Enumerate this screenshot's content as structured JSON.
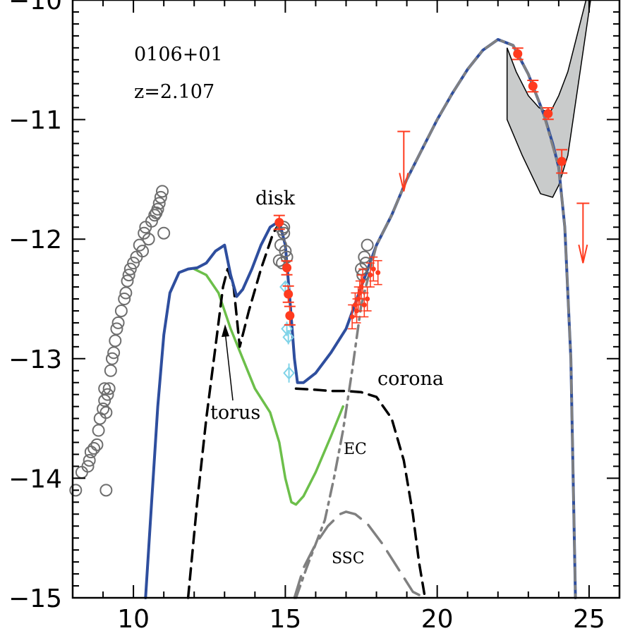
{
  "chart_data": {
    "type": "line",
    "title": "",
    "xlabel": "",
    "ylabel": "",
    "xlim": [
      8,
      26
    ],
    "ylim": [
      -15,
      -10
    ],
    "x_ticks": [
      10,
      15,
      20,
      25
    ],
    "y_ticks": [
      -15,
      -14,
      -13,
      -12,
      -11,
      -10
    ],
    "x_tick_labels": [
      "10",
      "15",
      "20",
      "25"
    ],
    "y_tick_labels": [
      "−15",
      "−14",
      "−13",
      "−12",
      "−11",
      "−10"
    ],
    "annotations": {
      "source": "0106+01",
      "redshift": "z=2.107",
      "disk": "disk",
      "torus": "torus",
      "corona": "corona",
      "ec": "EC",
      "ssc": "SSC"
    },
    "colors": {
      "total": "#2e4e9e",
      "synchrotron": "#6cbf4a",
      "thermal": "#000000",
      "ec": "#808080",
      "ssc": "#808080",
      "data_red": "#ff3b1f",
      "data_cyan": "#7fd3e8",
      "archival": "#6e6e6e",
      "fermi_band": "#c9cbcb"
    },
    "series": [
      {
        "key": "total",
        "x": [
          10.4,
          10.6,
          10.8,
          11.0,
          11.2,
          11.5,
          11.8,
          12.1,
          12.4,
          12.7,
          13.0,
          13.2,
          13.4,
          13.6,
          13.9,
          14.2,
          14.5,
          14.8,
          15.0,
          15.15,
          15.3,
          15.4,
          15.6,
          16.0,
          16.5,
          17.0,
          17.5,
          18.0,
          18.5,
          19.0,
          19.5,
          20.0,
          20.5,
          21.0,
          21.5,
          22.0,
          22.5,
          23.0,
          23.5,
          23.8,
          24.0,
          24.2,
          24.4,
          24.55
        ],
        "y": [
          -15.0,
          -14.2,
          -13.4,
          -12.8,
          -12.45,
          -12.28,
          -12.25,
          -12.24,
          -12.2,
          -12.1,
          -12.05,
          -12.3,
          -12.48,
          -12.42,
          -12.25,
          -12.05,
          -11.9,
          -11.85,
          -12.05,
          -12.5,
          -13.0,
          -13.2,
          -13.2,
          -13.12,
          -12.95,
          -12.75,
          -12.4,
          -12.05,
          -11.8,
          -11.5,
          -11.25,
          -11.0,
          -10.78,
          -10.58,
          -10.42,
          -10.33,
          -10.38,
          -10.62,
          -10.95,
          -11.2,
          -11.4,
          -11.9,
          -13.0,
          -15.0
        ]
      },
      {
        "key": "synchrotron",
        "x": [
          12.0,
          12.4,
          12.8,
          13.2,
          13.6,
          14.0,
          14.5,
          14.8,
          15.0,
          15.2,
          15.35,
          15.6,
          16.0,
          16.5,
          16.9
        ],
        "y": [
          -12.25,
          -12.3,
          -12.45,
          -12.75,
          -13.0,
          -13.25,
          -13.45,
          -13.7,
          -14.0,
          -14.2,
          -14.22,
          -14.15,
          -13.95,
          -13.65,
          -13.4
        ]
      },
      {
        "key": "torus",
        "x": [
          11.8,
          12.1,
          12.4,
          12.7,
          12.95,
          13.1,
          13.3,
          13.5,
          13.8,
          14.2,
          14.6,
          14.85
        ],
        "y": [
          -15.0,
          -14.2,
          -13.5,
          -12.9,
          -12.4,
          -12.25,
          -12.4,
          -12.9,
          -12.6,
          -12.25,
          -11.95,
          -11.85
        ]
      },
      {
        "key": "corona",
        "x": [
          15.35,
          16.0,
          16.5,
          17.0,
          17.5,
          18.0,
          18.5,
          18.9,
          19.2,
          19.4,
          19.6
        ],
        "y": [
          -13.25,
          -13.26,
          -13.27,
          -13.27,
          -13.28,
          -13.32,
          -13.5,
          -13.85,
          -14.3,
          -14.7,
          -15.0
        ]
      },
      {
        "key": "ec",
        "x": [
          15.35,
          15.7,
          16.0,
          16.3,
          16.6,
          16.9,
          17.2,
          17.5,
          18.0,
          18.5,
          19.0,
          19.5,
          20.0,
          20.5,
          21.0,
          21.5,
          22.0,
          22.5,
          23.0,
          23.5,
          24.0,
          24.2,
          24.4,
          24.55
        ],
        "y": [
          -15.0,
          -14.75,
          -14.55,
          -14.35,
          -14.0,
          -13.6,
          -13.1,
          -12.55,
          -12.05,
          -11.8,
          -11.5,
          -11.25,
          -11.0,
          -10.78,
          -10.58,
          -10.42,
          -10.33,
          -10.38,
          -10.62,
          -10.95,
          -11.4,
          -11.9,
          -13.0,
          -15.0
        ]
      },
      {
        "key": "ssc",
        "x": [
          15.3,
          15.6,
          16.0,
          16.4,
          16.8,
          17.0,
          17.3,
          17.7,
          18.2,
          18.7,
          19.2,
          19.6
        ],
        "y": [
          -15.0,
          -14.75,
          -14.55,
          -14.4,
          -14.3,
          -14.28,
          -14.3,
          -14.38,
          -14.55,
          -14.75,
          -14.95,
          -15.0
        ]
      }
    ],
    "fermi_band": {
      "upper_x": [
        22.3,
        22.6,
        23.0,
        23.35,
        23.7,
        24.0,
        24.3,
        24.6,
        24.9,
        25.05
      ],
      "upper_y": [
        -10.4,
        -10.6,
        -10.8,
        -10.9,
        -10.95,
        -10.8,
        -10.6,
        -10.3,
        -10.0,
        -10.0
      ],
      "lower_x": [
        22.3,
        22.8,
        23.4,
        23.8,
        24.0,
        24.3
      ],
      "lower_y": [
        -11.0,
        -11.3,
        -11.62,
        -11.65,
        -11.55,
        -11.3
      ]
    },
    "data_red_large": {
      "x": [
        14.8,
        15.05,
        15.1,
        15.15,
        22.65,
        23.15,
        23.65,
        24.1
      ],
      "y": [
        -11.86,
        -12.24,
        -12.46,
        -12.64,
        -10.45,
        -10.72,
        -10.95,
        -11.35
      ],
      "yerr": [
        0.04,
        0.04,
        0.05,
        0.06,
        0.03,
        0.03,
        0.03,
        0.08
      ]
    },
    "data_red_small": {
      "x": [
        17.2,
        17.3,
        17.35,
        17.4,
        17.45,
        17.5,
        17.55,
        17.6,
        17.7,
        17.8,
        17.9,
        18.05
      ],
      "y": [
        -12.65,
        -12.55,
        -12.6,
        -12.5,
        -12.45,
        -12.4,
        -12.35,
        -12.55,
        -12.5,
        -12.3,
        -12.25,
        -12.28
      ],
      "yerr": [
        0.1,
        0.1,
        0.1,
        0.1,
        0.1,
        0.1,
        0.1,
        0.1,
        0.1,
        0.1,
        0.1,
        0.1
      ]
    },
    "data_cyan": {
      "x": [
        15.0,
        15.05,
        15.1,
        15.12
      ],
      "y": [
        -12.4,
        -12.75,
        -12.82,
        -13.12
      ],
      "yerr": [
        0.05,
        0.06,
        0.06,
        0.08
      ]
    },
    "upper_limits": {
      "x": [
        18.9,
        24.8
      ],
      "y": [
        -11.1,
        -11.7
      ],
      "arrow_len": 0.5
    },
    "archival": {
      "x": [
        8.1,
        8.3,
        8.5,
        8.55,
        8.6,
        8.7,
        8.8,
        8.85,
        8.9,
        9.0,
        9.05,
        9.05,
        9.1,
        9.1,
        9.15,
        9.2,
        9.25,
        9.3,
        9.35,
        9.4,
        9.45,
        9.5,
        9.6,
        9.7,
        9.75,
        9.8,
        9.85,
        9.9,
        10.0,
        10.1,
        10.2,
        10.3,
        10.35,
        10.4,
        10.5,
        10.6,
        10.7,
        10.75,
        10.8,
        10.85,
        10.9,
        10.95,
        11.0,
        14.9,
        14.95,
        15.0,
        15.05,
        14.9,
        14.85,
        14.8,
        14.95,
        17.5,
        17.6,
        17.7,
        17.55,
        17.65
      ],
      "y": [
        -14.1,
        -13.95,
        -13.9,
        -13.85,
        -13.78,
        -13.75,
        -13.72,
        -13.6,
        -13.5,
        -13.42,
        -13.35,
        -13.25,
        -13.45,
        -14.1,
        -13.3,
        -13.25,
        -13.1,
        -13.0,
        -12.95,
        -12.85,
        -12.75,
        -12.7,
        -12.6,
        -12.5,
        -12.45,
        -12.35,
        -12.3,
        -12.25,
        -12.2,
        -12.15,
        -12.05,
        -12.1,
        -11.95,
        -11.9,
        -12.0,
        -11.85,
        -11.8,
        -11.78,
        -11.75,
        -11.7,
        -11.65,
        -11.6,
        -11.95,
        -11.92,
        -11.95,
        -12.1,
        -12.15,
        -12.2,
        -12.05,
        -12.18,
        -11.9,
        -12.25,
        -12.15,
        -12.05,
        -12.3,
        -12.2
      ]
    }
  }
}
